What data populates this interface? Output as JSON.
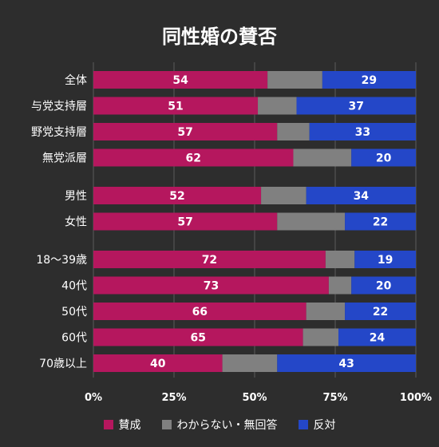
{
  "chart_data": {
    "type": "bar",
    "orientation": "horizontal",
    "stacked": true,
    "title": "同性婚の賛否",
    "categories": [
      "全体",
      "与党支持層",
      "野党支持層",
      "無党派層",
      "男性",
      "女性",
      "18〜39歳",
      "40代",
      "50代",
      "60代",
      "70歳以上"
    ],
    "groups": [
      [
        0,
        1,
        2,
        3
      ],
      [
        4,
        5
      ],
      [
        6,
        7,
        8,
        9,
        10
      ]
    ],
    "xlim": [
      0,
      100
    ],
    "xticks": [
      "0%",
      "25%",
      "50%",
      "75%",
      "100%"
    ],
    "series": [
      {
        "name": "賛成",
        "color": "#b5175e",
        "values": [
          54,
          51,
          57,
          62,
          52,
          57,
          72,
          73,
          66,
          65,
          40
        ]
      },
      {
        "name": "わからない・無回答",
        "color": "#808080",
        "values": [
          17,
          12,
          10,
          18,
          14,
          21,
          9,
          7,
          12,
          11,
          17
        ]
      },
      {
        "name": "反対",
        "color": "#2447c8",
        "values": [
          29,
          37,
          33,
          20,
          34,
          22,
          19,
          20,
          22,
          24,
          43
        ]
      }
    ],
    "labeled_series": [
      "賛成",
      "反対"
    ],
    "legend_position": "bottom",
    "grid": true
  }
}
